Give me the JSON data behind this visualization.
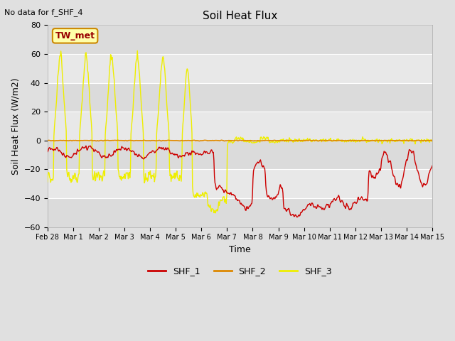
{
  "title": "Soil Heat Flux",
  "xlabel": "Time",
  "ylabel": "Soil Heat Flux (W/m2)",
  "note": "No data for f_SHF_4",
  "legend_box_label": "TW_met",
  "ylim": [
    -60,
    80
  ],
  "yticks": [
    -60,
    -40,
    -20,
    0,
    20,
    40,
    60,
    80
  ],
  "fig_bg_color": "#e0e0e0",
  "plot_bg_color": "#e8e8e8",
  "series_colors": {
    "SHF_1": "#cc0000",
    "SHF_2": "#dd8800",
    "SHF_3": "#eeee00"
  },
  "day_labels": [
    "Feb 28",
    "Mar 1",
    "Mar 2",
    "Mar 3",
    "Mar 4",
    "Mar 5",
    "Mar 6",
    "Mar 7",
    "Mar 8",
    "Mar 9",
    "Mar 10",
    "Mar 11",
    "Mar 12",
    "Mar 13",
    "Mar 14",
    "Mar 15"
  ],
  "legend_labels": [
    "SHF_1",
    "SHF_2",
    "SHF_3"
  ]
}
